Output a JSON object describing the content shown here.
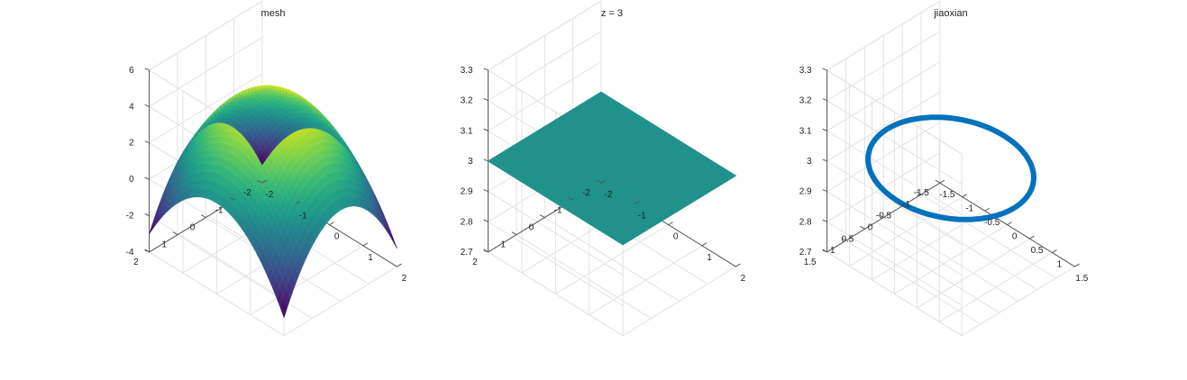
{
  "chart_data": [
    {
      "type": "surface",
      "title": "mesh",
      "colormap": "viridis",
      "xlim": [
        -2,
        2
      ],
      "ylim": [
        -2,
        2
      ],
      "zlim": [
        -4,
        6
      ],
      "x_ticks": [
        "-2",
        "-1",
        "0",
        "1",
        "2"
      ],
      "y_ticks": [
        "-2",
        "-1",
        "0",
        "1",
        "2"
      ],
      "z_ticks": [
        "-4",
        "-2",
        "0",
        "2",
        "4",
        "6"
      ],
      "surface": {
        "z_at_center": 5,
        "z_at_edge_mid": 1,
        "z_at_corner": -3
      },
      "grid": true
    },
    {
      "type": "surface",
      "title": "z = 3",
      "color": "#21918c",
      "xlim": [
        -2,
        2
      ],
      "ylim": [
        -2,
        2
      ],
      "zlim": [
        2.7,
        3.3
      ],
      "x_ticks": [
        "-2",
        "-1",
        "0",
        "1",
        "2"
      ],
      "y_ticks": [
        "-2",
        "-1",
        "0",
        "1",
        "2"
      ],
      "z_ticks": [
        "2.7",
        "2.8",
        "2.9",
        "3",
        "3.1",
        "3.2",
        "3.3"
      ],
      "plane_z": 3,
      "grid": true
    },
    {
      "type": "line3d",
      "title": "jiaoxian",
      "color": "#0072bd",
      "xlim": [
        -1.5,
        1.5
      ],
      "ylim": [
        -1.5,
        1.5
      ],
      "zlim": [
        2.7,
        3.3
      ],
      "x_ticks": [
        "-1.5",
        "-1",
        "-0.5",
        "0",
        "0.5",
        "1",
        "1.5"
      ],
      "y_ticks": [
        "-1.5",
        "-1",
        "-0.5",
        "0",
        "0.5",
        "1",
        "1.5"
      ],
      "z_ticks": [
        "2.7",
        "2.8",
        "2.9",
        "3",
        "3.1",
        "3.2",
        "3.3"
      ],
      "curve": {
        "shape": "circle",
        "radius": 1.414,
        "z": 3
      },
      "grid": true
    }
  ]
}
